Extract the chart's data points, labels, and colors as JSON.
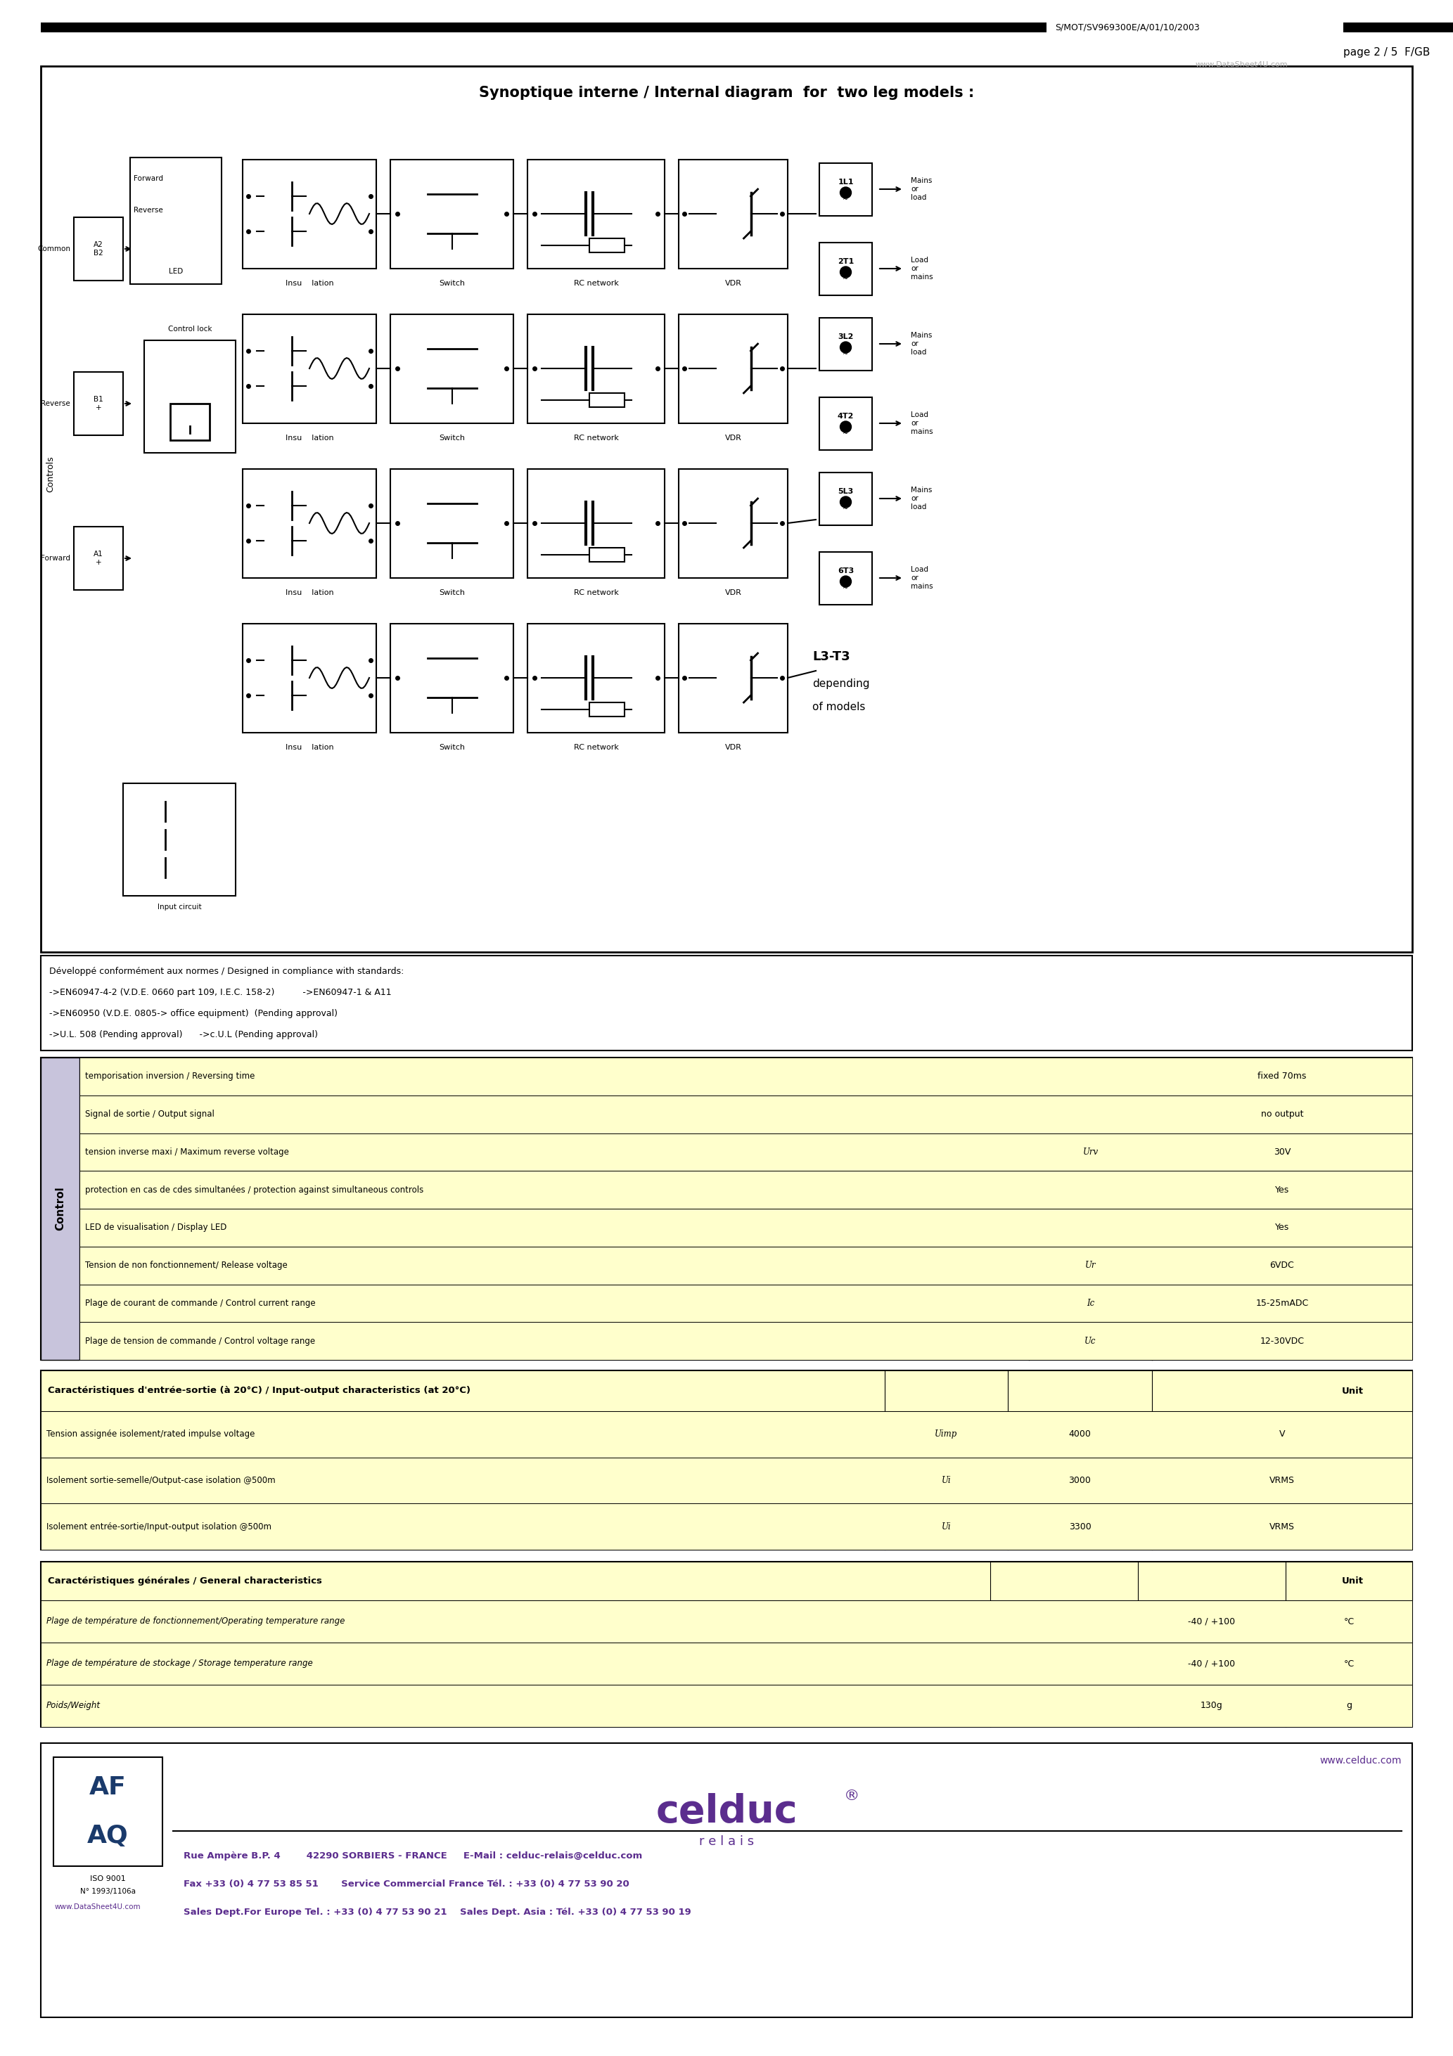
{
  "page_ref": "S/MOT/SV969300E/A/01/10/2003",
  "page_num": "page 2 / 5  F/GB",
  "watermark_top": "www.DataSheet4U.com",
  "diagram_title": "Synoptique interne / Internal diagram  for  two leg models :",
  "standards_text": [
    "Développé conformément aux normes / Designed in compliance with standards:",
    "->EN60947-4-2 (V.D.E. 0660 part 109, I.E.C. 158-2)          ->EN60947-1 & A11",
    "->EN60950 (V.D.E. 0805-> office equipment)  (Pending approval)",
    "->U.L. 508 (Pending approval)      ->c.U.L (Pending approval)"
  ],
  "control_rows": [
    [
      "Plage de tension de commande / Control voltage range",
      "Uc",
      "12-30VDC"
    ],
    [
      "Plage de courant de commande / Control current range",
      "Ic",
      "15-25mADC"
    ],
    [
      "Tension de non fonctionnement/ Release voltage",
      "Ur",
      "6VDC"
    ],
    [
      "LED de visualisation / Display LED",
      "",
      "Yes"
    ],
    [
      "protection en cas de cdes simultanées / protection against simultaneous controls",
      "",
      "Yes"
    ],
    [
      "tension inverse maxi / Maximum reverse voltage",
      "Urv",
      "30V"
    ],
    [
      "Signal de sortie / Output signal",
      "",
      "no output"
    ],
    [
      "temporisation inversion / Reversing time",
      "",
      "fixed 70ms"
    ]
  ],
  "io_header": "Caractéristiques d'entrée-sortie (à 20°C) / Input-output characteristics (at 20°C)",
  "io_rows": [
    [
      "Isolement entrée-sortie/Input-output isolation @500m",
      "Ui",
      "3300",
      "VRMS"
    ],
    [
      "Isolement sortie-semelle/Output-case isolation @500m",
      "Ui",
      "3000",
      "VRMS"
    ],
    [
      "Tension assignée isolement/rated impulse voltage",
      "Uimp",
      "4000",
      "V"
    ]
  ],
  "gen_header": "Caractéristiques générales / General characteristics",
  "gen_rows": [
    [
      "Poids/Weight",
      "",
      "130g",
      "g"
    ],
    [
      "Plage de température de stockage / Storage temperature range",
      "",
      "-40 / +100",
      "°C"
    ],
    [
      "Plage de température de fonctionnement/Operating temperature range",
      "",
      "-40 / +100",
      "°C"
    ]
  ],
  "footer_logo": "celduc",
  "footer_reg": "®",
  "footer_sub": "r e l a i s",
  "footer_website": "www.celduc.com",
  "footer_line1": "Rue Ampère B.P. 4        42290 SORBIERS - FRANCE     E-Mail : celduc-relais@celduc.com",
  "footer_line2": "Fax +33 (0) 4 77 53 85 51       Service Commercial France Tél. : +33 (0) 4 77 53 90 20",
  "footer_line3": "Sales Dept.For Europe Tel. : +33 (0) 4 77 53 90 21    Sales Dept. Asia : Tél. +33 (0) 4 77 53 90 19",
  "footer_iso": "ISO 9001",
  "footer_cert": "N° 1993/1106a",
  "footer_watermark": "www.DataSheet4U.com",
  "bg": "#ffffff",
  "yellow": "#ffffcc",
  "ctrl_bg": "#c8c4dc",
  "purple": "#5b2d8e",
  "gray": "#aaaaaa",
  "black": "#000000"
}
